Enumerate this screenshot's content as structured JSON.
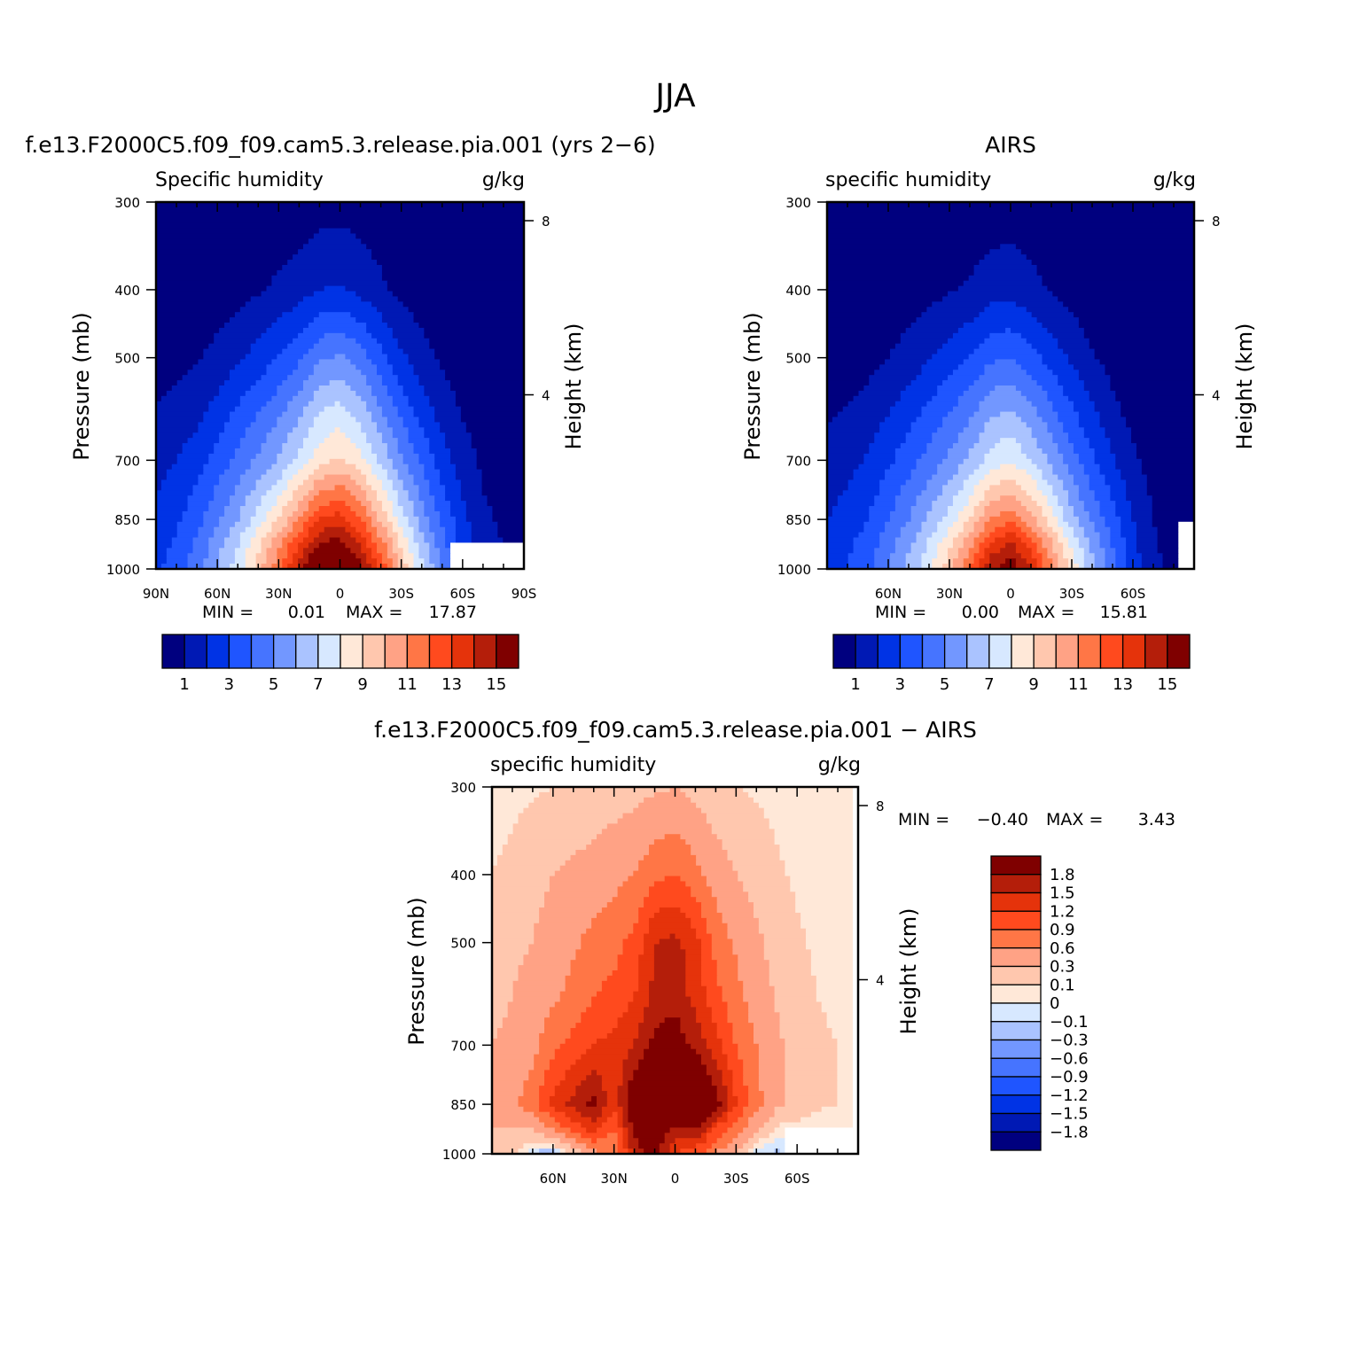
{
  "figure": {
    "title": "JJA"
  },
  "colors": {
    "fill_levels": [
      "#00007f",
      "#0019b4",
      "#0033e5",
      "#1f55ff",
      "#4674ff",
      "#7297ff",
      "#aac3ff",
      "#d7e8ff",
      "#ffe8d8",
      "#ffc7ae",
      "#ffa285",
      "#ff7646",
      "#ff4a1e",
      "#e5330b",
      "#b41e0a",
      "#7f0000"
    ]
  },
  "chart_data": [
    {
      "type": "contour",
      "panel": "model",
      "title": "f.e13.F2000C5.f09_f09.cam5.3.release.pia.001 (yrs 2−6)",
      "left_string": "Specific humidity",
      "right_string": "g/kg",
      "ylabel": "Pressure (mb)",
      "ylabel_right": "Height (km)",
      "x_ticks": [
        "90N",
        "60N",
        "30N",
        "0",
        "30S",
        "60S",
        "90S"
      ],
      "x_tick_values": [
        90,
        60,
        30,
        0,
        -30,
        -60,
        -90
      ],
      "xlim": [
        90,
        -90
      ],
      "y_ticks": [
        300,
        400,
        500,
        700,
        850,
        1000
      ],
      "ylim": [
        300,
        1000
      ],
      "y_scale": "log",
      "height_ticks": [
        8,
        4
      ],
      "min_label": "MIN =",
      "min_value": "0.01",
      "max_label": "MAX =",
      "max_value": "17.87",
      "levels": [
        1,
        2,
        3,
        4,
        5,
        6,
        7,
        8,
        9,
        10,
        11,
        12,
        13,
        14,
        15
      ],
      "colorbar_labels": [
        "1",
        "3",
        "5",
        "7",
        "9",
        "11",
        "13",
        "15"
      ],
      "fields": {
        "lat": [
          90,
          80,
          70,
          60,
          50,
          40,
          30,
          20,
          10,
          0,
          -10,
          -20,
          -30,
          -40,
          -50,
          -60,
          -70,
          -80,
          -90
        ],
        "pressure": [
          300,
          400,
          500,
          600,
          700,
          850,
          925,
          1000
        ],
        "ground_mask": [
          {
            "lat_from": -53,
            "lat_to": -90,
            "pressure_below": 925
          }
        ],
        "values": [
          [
            0.05,
            0.06,
            0.08,
            0.1,
            0.15,
            0.2,
            0.3,
            0.4,
            0.55,
            0.6,
            0.5,
            0.3,
            0.18,
            0.1,
            0.06,
            0.04,
            0.03,
            0.02,
            0.01
          ],
          [
            0.2,
            0.25,
            0.3,
            0.45,
            0.6,
            0.9,
            1.2,
            1.5,
            2.0,
            2.1,
            1.7,
            1.2,
            0.7,
            0.4,
            0.2,
            0.1,
            0.06,
            0.04,
            0.03
          ],
          [
            0.6,
            0.7,
            0.9,
            1.3,
            1.8,
            2.4,
            3.0,
            3.8,
            4.8,
            5.2,
            4.5,
            3.3,
            2.2,
            1.4,
            0.8,
            0.4,
            0.2,
            0.1,
            0.08
          ],
          [
            1.1,
            1.3,
            1.7,
            2.4,
            3.2,
            4.0,
            4.8,
            5.8,
            7.0,
            7.5,
            6.6,
            5.2,
            3.8,
            2.6,
            1.6,
            0.9,
            0.5,
            0.3,
            0.2
          ],
          [
            1.7,
            2.0,
            2.6,
            3.4,
            4.3,
            5.2,
            6.1,
            7.3,
            8.6,
            9.2,
            8.3,
            6.8,
            5.2,
            3.8,
            2.5,
            1.5,
            0.8,
            0.5,
            0.4
          ],
          [
            2.2,
            2.8,
            3.6,
            4.8,
            6.0,
            7.5,
            9.0,
            11.0,
            13.0,
            13.5,
            12.0,
            9.8,
            7.5,
            5.5,
            3.8,
            2.3,
            1.2,
            0.8,
            0.6
          ],
          [
            2.6,
            3.2,
            4.2,
            5.6,
            7.0,
            8.8,
            10.8,
            13.0,
            15.2,
            15.6,
            14.0,
            11.5,
            8.8,
            6.5,
            4.5,
            2.6,
            1.4,
            1.0,
            0.8
          ],
          [
            2.8,
            3.4,
            4.6,
            6.0,
            7.6,
            9.5,
            11.8,
            14.5,
            17.0,
            17.5,
            15.6,
            12.8,
            9.8,
            7.2,
            5.0,
            3.0,
            1.5,
            1.1,
            0.9
          ]
        ]
      }
    },
    {
      "type": "contour",
      "panel": "obs",
      "title": "AIRS",
      "left_string": "specific humidity",
      "right_string": "g/kg",
      "ylabel": "Pressure (mb)",
      "ylabel_right": "Height (km)",
      "x_ticks": [
        "60N",
        "30N",
        "0",
        "30S",
        "60S"
      ],
      "x_tick_values": [
        60,
        30,
        0,
        -30,
        -60
      ],
      "xlim": [
        90,
        -90
      ],
      "y_ticks": [
        300,
        400,
        500,
        700,
        850,
        1000
      ],
      "ylim": [
        300,
        1000
      ],
      "y_scale": "log",
      "height_ticks": [
        8,
        4
      ],
      "min_label": "MIN =",
      "min_value": "0.00",
      "max_label": "MAX =",
      "max_value": "15.81",
      "levels": [
        1,
        2,
        3,
        4,
        5,
        6,
        7,
        8,
        9,
        10,
        11,
        12,
        13,
        14,
        15
      ],
      "colorbar_labels": [
        "1",
        "3",
        "5",
        "7",
        "9",
        "11",
        "13",
        "15"
      ],
      "fields": {
        "lat": [
          90,
          80,
          70,
          60,
          50,
          40,
          30,
          20,
          10,
          0,
          -10,
          -20,
          -30,
          -40,
          -50,
          -60,
          -70,
          -80,
          -90
        ],
        "pressure": [
          300,
          400,
          500,
          600,
          700,
          850,
          925,
          1000
        ],
        "ground_mask": [
          {
            "lat_from": -83,
            "lat_to": -90,
            "pressure_below": 850
          }
        ],
        "values": [
          [
            0.03,
            0.04,
            0.05,
            0.07,
            0.1,
            0.14,
            0.2,
            0.3,
            0.4,
            0.45,
            0.4,
            0.25,
            0.15,
            0.08,
            0.05,
            0.03,
            0.02,
            0.01,
            0.01
          ],
          [
            0.1,
            0.15,
            0.2,
            0.3,
            0.45,
            0.65,
            0.9,
            1.1,
            1.5,
            1.6,
            1.3,
            0.9,
            0.55,
            0.3,
            0.15,
            0.08,
            0.05,
            0.03,
            0.02
          ],
          [
            0.4,
            0.5,
            0.7,
            1.0,
            1.4,
            1.9,
            2.5,
            3.0,
            3.8,
            4.0,
            3.4,
            2.6,
            1.8,
            1.1,
            0.6,
            0.3,
            0.15,
            0.08,
            0.05
          ],
          [
            0.9,
            1.1,
            1.4,
            2.0,
            2.6,
            3.3,
            4.0,
            4.8,
            5.8,
            6.2,
            5.4,
            4.3,
            3.2,
            2.2,
            1.3,
            0.7,
            0.4,
            0.2,
            0.15
          ],
          [
            1.4,
            1.7,
            2.1,
            2.8,
            3.6,
            4.4,
            5.2,
            6.2,
            7.4,
            7.9,
            7.0,
            5.7,
            4.4,
            3.2,
            2.1,
            1.2,
            0.6,
            0.35,
            0.3
          ],
          [
            2.0,
            2.4,
            3.0,
            4.0,
            5.0,
            6.2,
            7.4,
            9.0,
            11.0,
            11.8,
            10.4,
            8.4,
            6.4,
            4.8,
            3.4,
            2.0,
            1.0,
            0.6,
            0.5
          ],
          [
            2.3,
            2.8,
            3.5,
            4.6,
            5.8,
            7.2,
            8.8,
            10.8,
            13.2,
            14.2,
            12.6,
            10.2,
            7.8,
            5.8,
            4.0,
            2.3,
            1.1,
            0.7,
            0.6
          ],
          [
            2.5,
            3.0,
            3.8,
            5.0,
            6.3,
            7.8,
            9.6,
            12.0,
            14.8,
            15.8,
            14.0,
            11.2,
            8.6,
            6.4,
            4.4,
            2.6,
            1.2,
            0.8,
            0.6
          ]
        ]
      }
    },
    {
      "type": "contour",
      "panel": "diff",
      "title": "f.e13.F2000C5.f09_f09.cam5.3.release.pia.001 − AIRS",
      "left_string": "specific humidity",
      "right_string": "g/kg",
      "ylabel": "Pressure (mb)",
      "ylabel_right": "Height (km)",
      "x_ticks": [
        "60N",
        "30N",
        "0",
        "30S",
        "60S"
      ],
      "x_tick_values": [
        60,
        30,
        0,
        -30,
        -60
      ],
      "xlim": [
        90,
        -90
      ],
      "y_ticks": [
        300,
        400,
        500,
        700,
        850,
        1000
      ],
      "ylim": [
        300,
        1000
      ],
      "y_scale": "log",
      "height_ticks": [
        8,
        4
      ],
      "min_label": "MIN =",
      "min_value": "−0.40",
      "max_label": "MAX =",
      "max_value": "3.43",
      "levels": [
        -1.8,
        -1.5,
        -1.2,
        -0.9,
        -0.6,
        -0.3,
        -0.1,
        0,
        0.1,
        0.3,
        0.6,
        0.9,
        1.2,
        1.5,
        1.8
      ],
      "colorbar_labels": [
        "1.8",
        "1.5",
        "1.2",
        "0.9",
        "0.6",
        "0.3",
        "0.1",
        "0",
        "−0.1",
        "−0.3",
        "−0.6",
        "−0.9",
        "−1.2",
        "−1.5",
        "−1.8"
      ],
      "fields": {
        "lat": [
          90,
          80,
          70,
          60,
          50,
          40,
          30,
          20,
          10,
          0,
          -10,
          -20,
          -30,
          -40,
          -50,
          -60,
          -70,
          -80,
          -90
        ],
        "pressure": [
          300,
          400,
          500,
          600,
          700,
          850,
          925,
          1000
        ],
        "ground_mask": [
          {
            "lat_from": -53,
            "lat_to": -90,
            "pressure_below": 925
          },
          {
            "lat_from": -88,
            "lat_to": -90,
            "pressure_below": 300
          }
        ],
        "values": [
          [
            0.05,
            0.06,
            0.08,
            0.1,
            0.12,
            0.14,
            0.16,
            0.2,
            0.25,
            0.3,
            0.2,
            0.12,
            0.1,
            0.08,
            0.06,
            0.05,
            0.04,
            0.03,
            0.03
          ],
          [
            0.1,
            0.14,
            0.2,
            0.3,
            0.35,
            0.4,
            0.5,
            0.6,
            0.8,
            0.9,
            0.7,
            0.45,
            0.3,
            0.2,
            0.12,
            0.08,
            0.06,
            0.05,
            0.05
          ],
          [
            0.2,
            0.25,
            0.3,
            0.45,
            0.55,
            0.7,
            0.8,
            1.0,
            1.5,
            1.6,
            1.3,
            0.8,
            0.55,
            0.35,
            0.2,
            0.12,
            0.08,
            0.06,
            0.06
          ],
          [
            0.25,
            0.3,
            0.4,
            0.55,
            0.7,
            0.9,
            1.0,
            1.2,
            1.6,
            1.7,
            1.4,
            1.0,
            0.7,
            0.45,
            0.28,
            0.15,
            0.1,
            0.08,
            0.07
          ],
          [
            0.3,
            0.35,
            0.5,
            0.8,
            1.0,
            1.2,
            1.3,
            1.5,
            1.9,
            2.0,
            1.7,
            1.3,
            0.9,
            0.6,
            0.35,
            0.2,
            0.12,
            0.1,
            0.08
          ],
          [
            0.4,
            0.5,
            0.8,
            1.3,
            1.6,
            1.9,
            1.3,
            2.2,
            2.8,
            3.0,
            2.6,
            2.0,
            1.2,
            0.7,
            0.35,
            0.2,
            0.12,
            0.1,
            0.08
          ],
          [
            0.3,
            0.25,
            0.3,
            0.6,
            1.0,
            1.3,
            0.9,
            1.9,
            2.3,
            1.6,
            1.8,
            1.1,
            0.7,
            0.3,
            0.05,
            0.04,
            0.04,
            0.04,
            0.04
          ],
          [
            0.3,
            0.15,
            -0.1,
            -0.25,
            0.1,
            0.5,
            0.6,
            1.6,
            1.9,
            1.2,
            1.0,
            0.6,
            0.3,
            -0.05,
            -0.15,
            0.05,
            0.04,
            0.04,
            0.04
          ]
        ]
      }
    }
  ]
}
